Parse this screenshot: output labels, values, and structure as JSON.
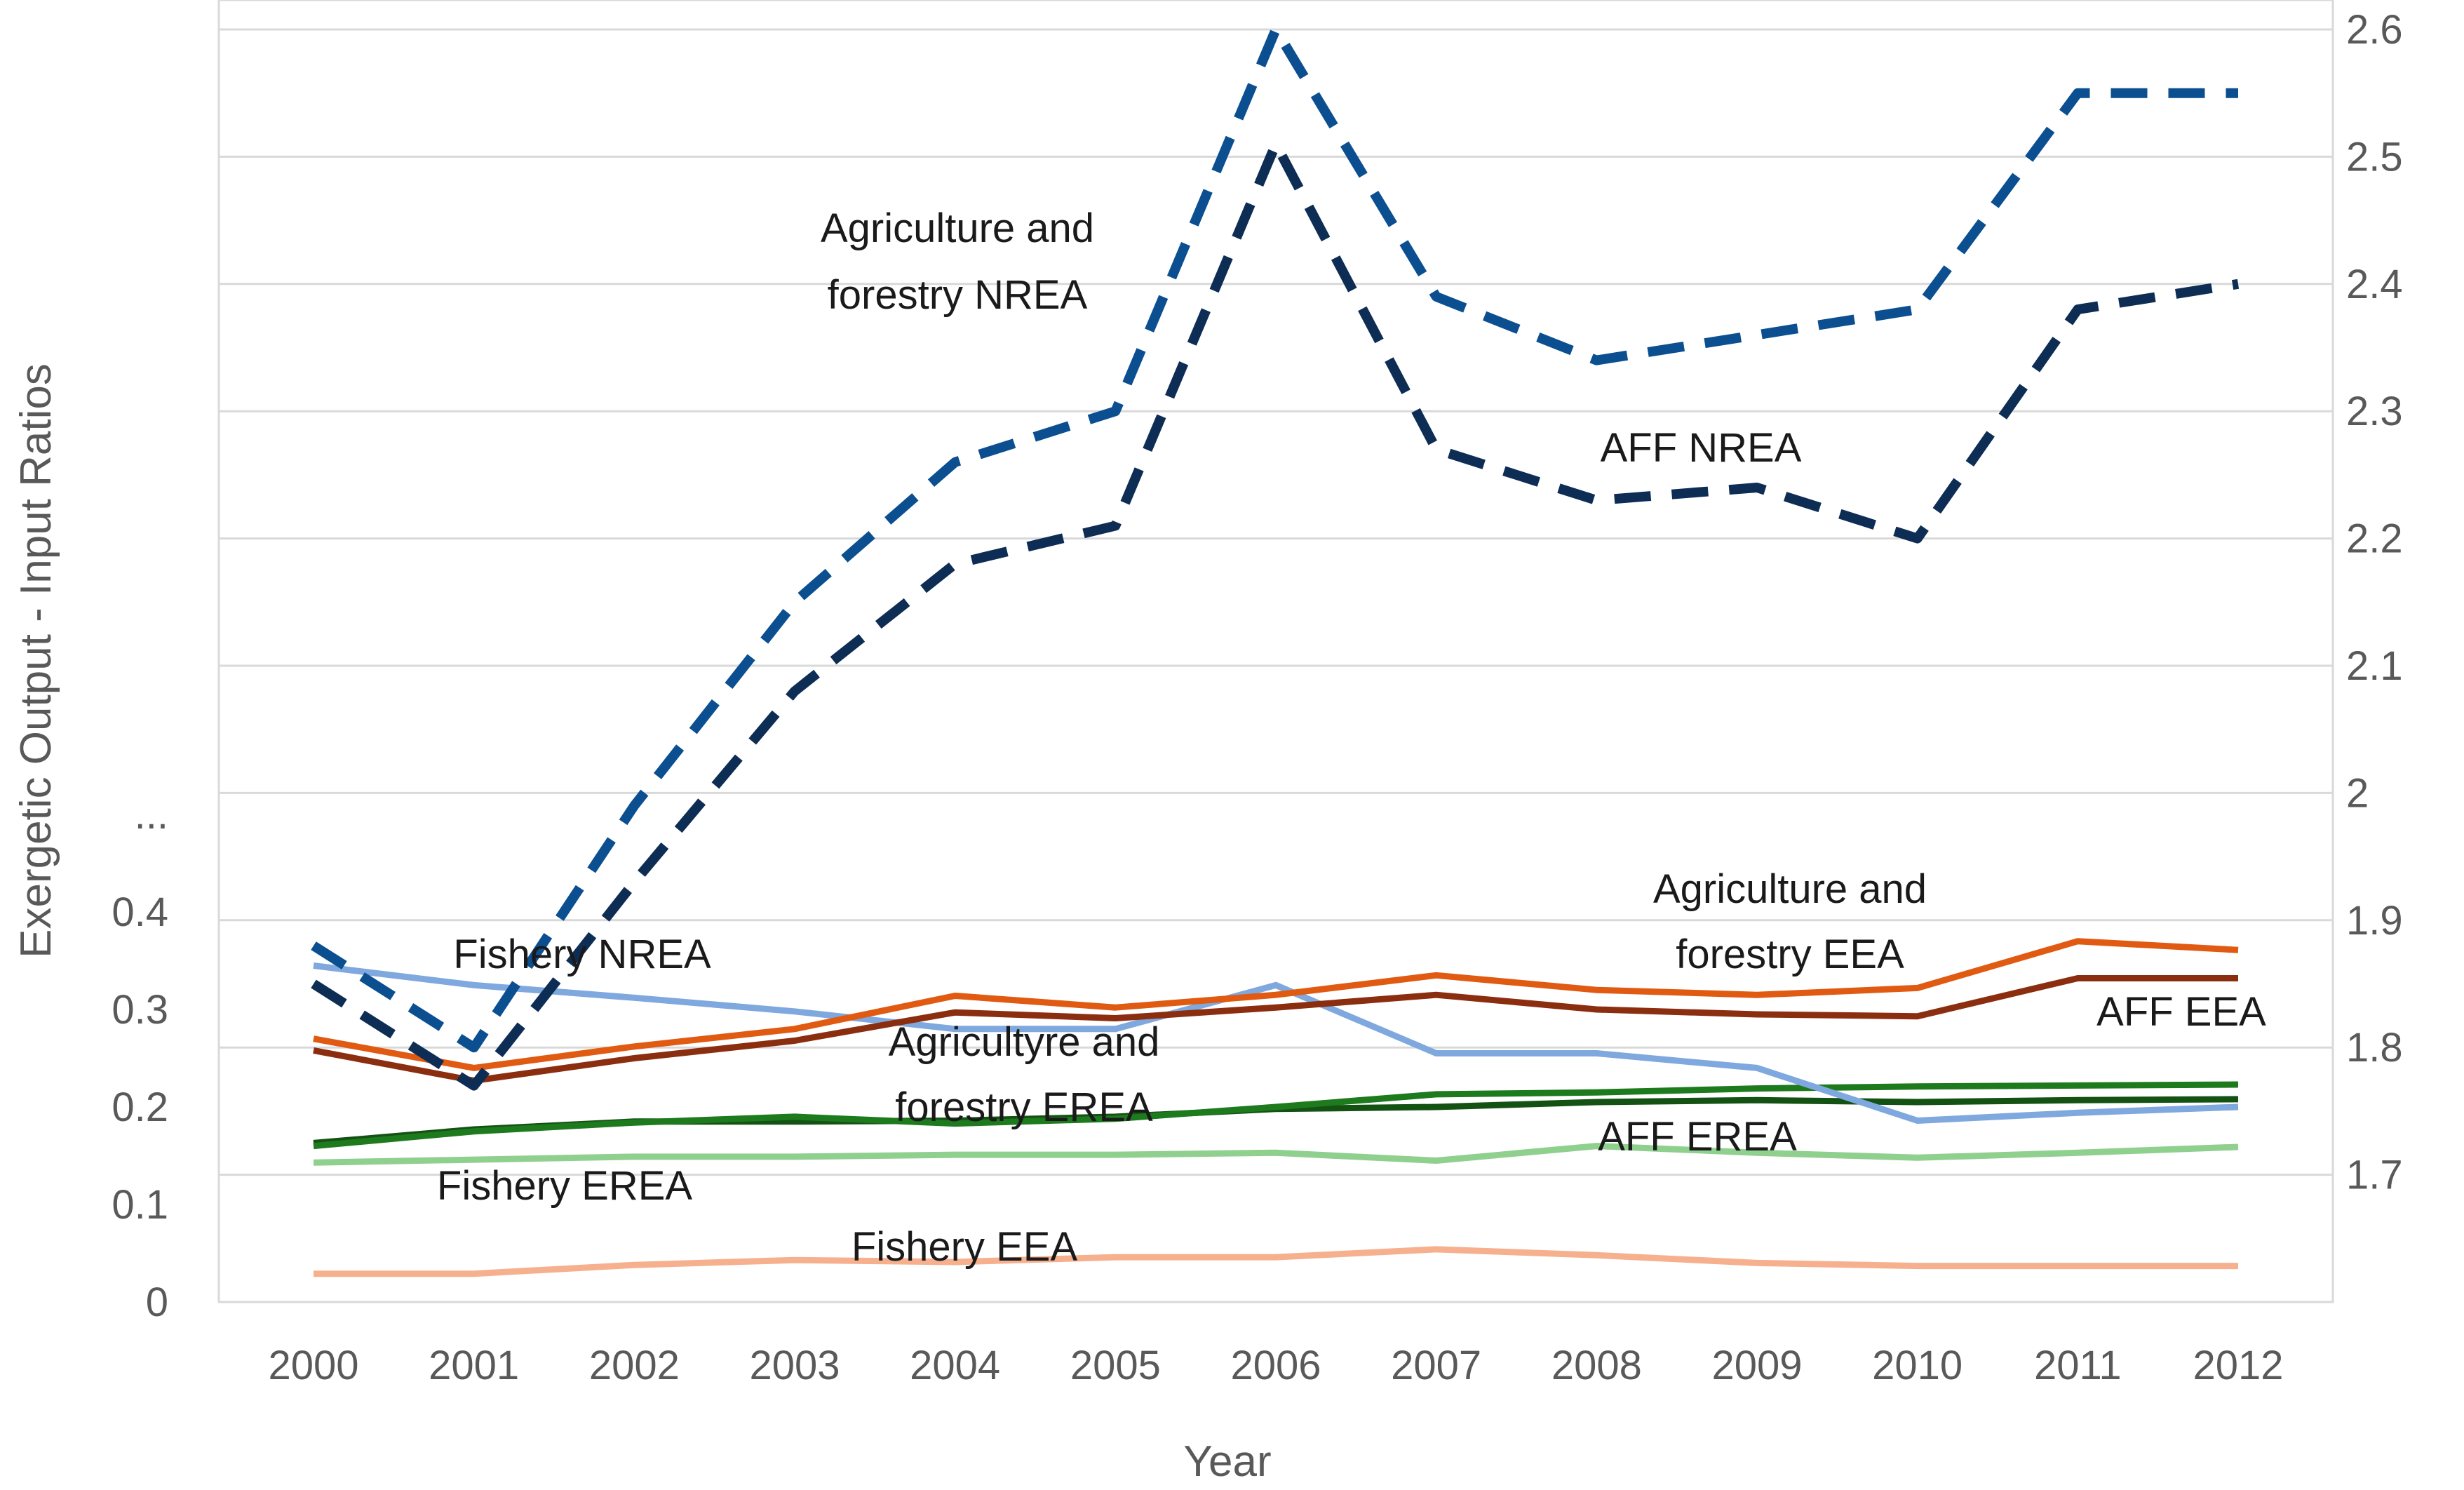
{
  "chart_data": {
    "type": "line",
    "title": "",
    "xlabel": "Year",
    "ylabel": "Exergetic Output - Input Ratios",
    "x": [
      "2000",
      "2001",
      "2002",
      "2003",
      "2004",
      "2005",
      "2006",
      "2007",
      "2008",
      "2009",
      "2010",
      "2011",
      "2012"
    ],
    "y_left": {
      "range": [
        0,
        0.5
      ],
      "ticks": [
        "0",
        "0.1",
        "0.2",
        "0.3",
        "0.4",
        "..."
      ]
    },
    "y_right": {
      "range": [
        1.6,
        2.6
      ],
      "ticks": [
        "1.7",
        "1.8",
        "1.9",
        "2",
        "2.1",
        "2.2",
        "2.3",
        "2.4",
        "2.5",
        "2.6"
      ]
    },
    "grid": true,
    "series": [
      {
        "name": "Agriculture and forestry NREA",
        "axis": "right",
        "style": "dashed",
        "color": "#0b4f91",
        "values": [
          1.88,
          1.8,
          1.99,
          2.15,
          2.26,
          2.3,
          2.6,
          2.39,
          2.34,
          2.36,
          2.38,
          2.55,
          2.55
        ]
      },
      {
        "name": "AFF NREA",
        "axis": "right",
        "style": "dashed",
        "color": "#0e2d55",
        "values": [
          1.85,
          1.77,
          1.93,
          2.08,
          2.18,
          2.21,
          2.51,
          2.27,
          2.23,
          2.24,
          2.2,
          2.38,
          2.4
        ]
      },
      {
        "name": "Fishery NREA",
        "axis": "left",
        "style": "solid",
        "color": "#7fa8df",
        "values": [
          0.345,
          0.325,
          0.312,
          0.298,
          0.28,
          0.28,
          0.325,
          0.255,
          0.255,
          0.24,
          0.186,
          0.194,
          0.2
        ]
      },
      {
        "name": "Agriculture and forestry EEA",
        "axis": "left",
        "style": "solid",
        "color": "#e05a12",
        "values": [
          0.27,
          0.24,
          0.262,
          0.28,
          0.314,
          0.302,
          0.315,
          0.335,
          0.32,
          0.315,
          0.322,
          0.37,
          0.361
        ]
      },
      {
        "name": "AFF EEA",
        "axis": "left",
        "style": "solid",
        "color": "#8b2e10",
        "values": [
          0.258,
          0.227,
          0.25,
          0.268,
          0.297,
          0.291,
          0.302,
          0.315,
          0.3,
          0.295,
          0.293,
          0.332,
          0.332
        ]
      },
      {
        "name": "Agricultyre and forestry EREA",
        "axis": "left",
        "style": "solid",
        "color": "#1d7a1d",
        "values": [
          0.16,
          0.175,
          0.184,
          0.19,
          0.183,
          0.188,
          0.2,
          0.213,
          0.215,
          0.219,
          0.221,
          0.222,
          0.223
        ]
      },
      {
        "name": "AFF EREA",
        "axis": "left",
        "style": "solid",
        "color": "#145214",
        "values": [
          0.163,
          0.177,
          0.185,
          0.185,
          0.186,
          0.19,
          0.198,
          0.2,
          0.205,
          0.207,
          0.205,
          0.207,
          0.208
        ]
      },
      {
        "name": "Fishery EREA",
        "axis": "left",
        "style": "solid",
        "color": "#8fd08f",
        "values": [
          0.143,
          0.146,
          0.149,
          0.149,
          0.151,
          0.151,
          0.153,
          0.145,
          0.16,
          0.153,
          0.148,
          0.153,
          0.159
        ]
      },
      {
        "name": "Fishery EEA",
        "axis": "left",
        "style": "solid",
        "color": "#f6b08e",
        "values": [
          0.029,
          0.029,
          0.038,
          0.043,
          0.041,
          0.046,
          0.046,
          0.054,
          0.048,
          0.04,
          0.037,
          0.037,
          0.037
        ]
      }
    ],
    "annotations": [
      {
        "text": "Agriculture and",
        "series": "Agriculture and forestry NREA"
      },
      {
        "text": "forestry NREA",
        "series": "Agriculture and forestry NREA"
      },
      {
        "text": "AFF NREA",
        "series": "AFF NREA"
      },
      {
        "text": "Agriculture and",
        "series": "Agriculture and forestry EEA"
      },
      {
        "text": "forestry EEA",
        "series": "Agriculture and forestry EEA"
      },
      {
        "text": "AFF EEA",
        "series": "AFF EEA"
      },
      {
        "text": "Fishery NREA",
        "series": "Fishery NREA"
      },
      {
        "text": "Agricultyre and",
        "series": "Agricultyre and forestry EREA"
      },
      {
        "text": "forestry EREA",
        "series": "Agricultyre and forestry EREA"
      },
      {
        "text": "AFF EREA",
        "series": "AFF EREA"
      },
      {
        "text": "Fishery EREA",
        "series": "Fishery EREA"
      },
      {
        "text": "Fishery EEA",
        "series": "Fishery EEA"
      }
    ]
  }
}
